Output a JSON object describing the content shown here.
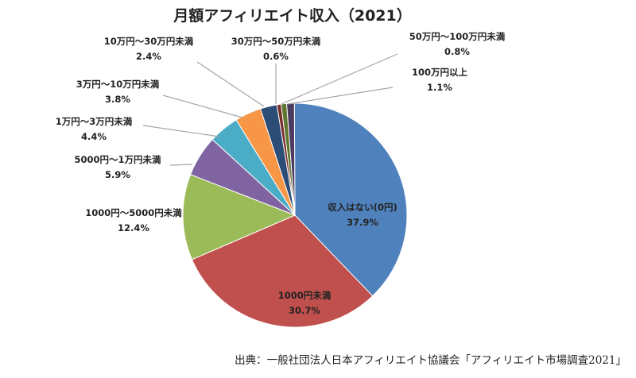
{
  "chart_data": {
    "type": "pie",
    "title": "月額アフィリエイト収入（2021）",
    "slices": [
      {
        "label": "収入はない(0円)",
        "pct_label": "37.9%",
        "value": 37.9,
        "color": "#4f81bd"
      },
      {
        "label": "1000円未満",
        "pct_label": "30.7%",
        "value": 30.7,
        "color": "#c0504d"
      },
      {
        "label": "1000円～5000円未満",
        "pct_label": "12.4%",
        "value": 12.4,
        "color": "#9bbb59"
      },
      {
        "label": "5000円～1万円未満",
        "pct_label": "5.9%",
        "value": 5.9,
        "color": "#8064a2"
      },
      {
        "label": "1万円～3万円未満",
        "pct_label": "4.4%",
        "value": 4.4,
        "color": "#4bacc6"
      },
      {
        "label": "3万円～10万円未満",
        "pct_label": "3.8%",
        "value": 3.8,
        "color": "#f79646"
      },
      {
        "label": "10万円～30万円未満",
        "pct_label": "2.4%",
        "value": 2.4,
        "color": "#2c4d75"
      },
      {
        "label": "30万円～50万円未満",
        "pct_label": "0.6%",
        "value": 0.6,
        "color": "#772c2a"
      },
      {
        "label": "50万円～100万円未満",
        "pct_label": "0.8%",
        "value": 0.8,
        "color": "#5f7530"
      },
      {
        "label": "100万円以上",
        "pct_label": "1.1%",
        "value": 1.1,
        "color": "#4d3b62"
      }
    ]
  },
  "source": "出典：一般社団法人日本アフィリエイト協議会「アフィリエイト市場調査2021」"
}
